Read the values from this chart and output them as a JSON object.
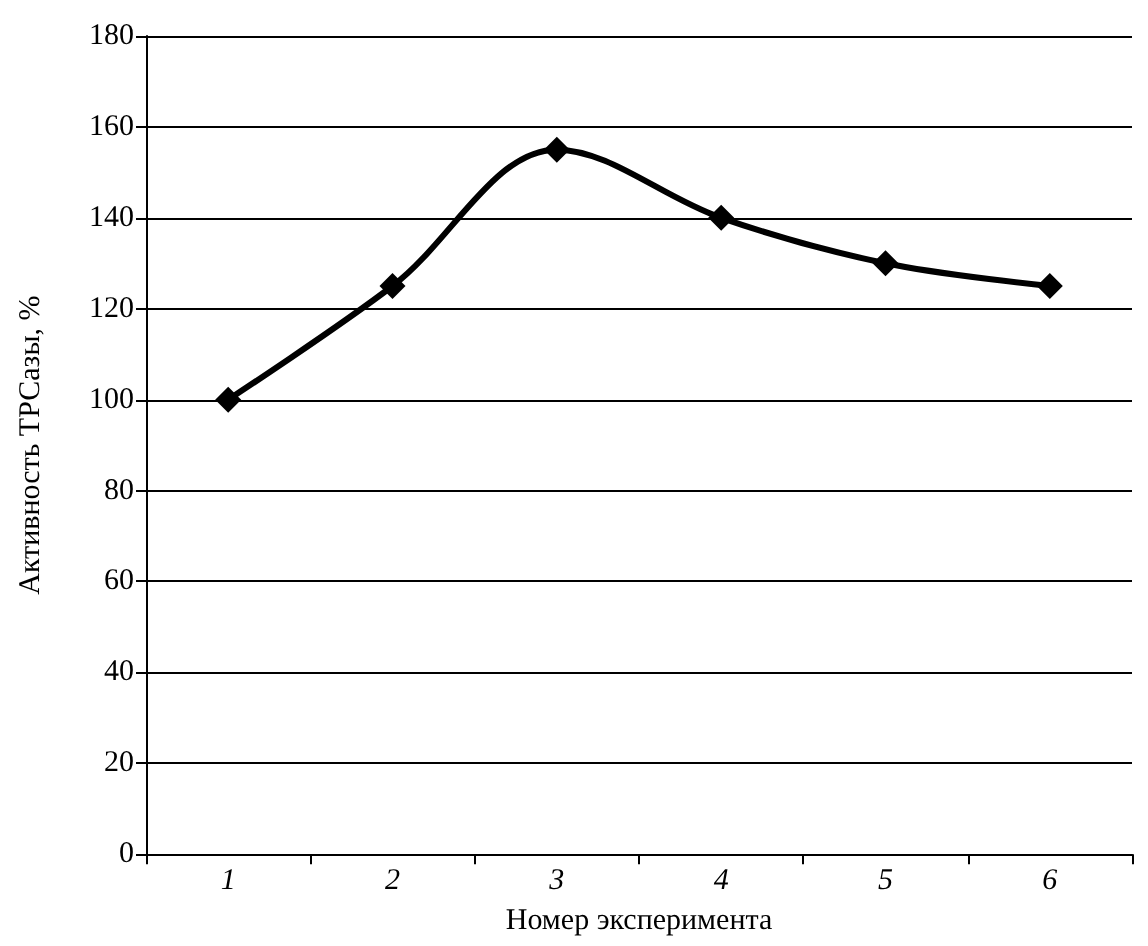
{
  "chart_data": {
    "type": "line",
    "xlabel": "Номер эксперимента",
    "ylabel": "Активность ТРСазы, %",
    "categories": [
      "1",
      "2",
      "3",
      "4",
      "5",
      "6"
    ],
    "series": [
      {
        "color": "#000000",
        "values": [
          100,
          125,
          155,
          140,
          130,
          125
        ]
      }
    ],
    "ylim": [
      0,
      180
    ],
    "yticks": [
      0,
      20,
      40,
      60,
      80,
      100,
      120,
      140,
      160,
      180
    ],
    "grid": "y",
    "marker": "diamond",
    "line_style": "solid"
  }
}
